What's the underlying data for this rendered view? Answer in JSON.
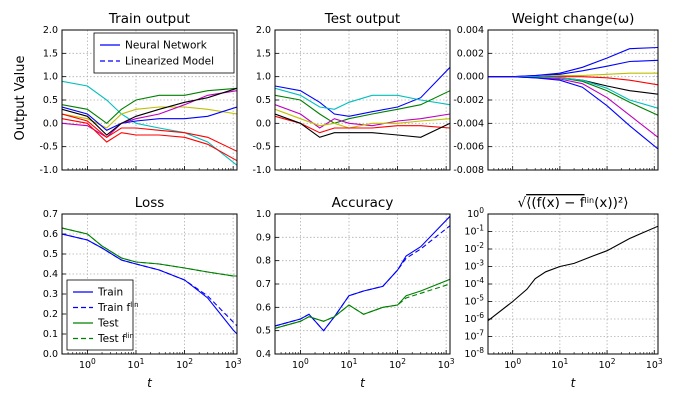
{
  "figure": {
    "ylabel_left": "Output Value",
    "x_axis_label": "t",
    "x_ticks": [
      {
        "label": "10",
        "exp": "0"
      },
      {
        "label": "10",
        "exp": "1"
      },
      {
        "label": "10",
        "exp": "2"
      },
      {
        "label": "10",
        "exp": "3"
      }
    ]
  },
  "chart_data": [
    {
      "id": "train-output",
      "type": "line",
      "title": "Train output",
      "xscale": "log",
      "xlim": [
        0.3,
        1200
      ],
      "ylim": [
        -1.0,
        2.0
      ],
      "yticks": [
        "-1.0",
        "-0.5",
        "0.0",
        "0.5",
        "1.0",
        "1.5",
        "2.0"
      ],
      "legend": {
        "position": "top-right",
        "entries": [
          {
            "label": "Neural Network",
            "style": "solid",
            "color": "#0000ff"
          },
          {
            "label": "Linearized Model",
            "style": "dashed",
            "color": "#0000ff"
          }
        ]
      },
      "x": [
        0.3,
        1,
        2.5,
        5,
        10,
        30,
        100,
        300,
        1200
      ],
      "series": [
        {
          "color": "#00bfbf",
          "values": [
            0.9,
            0.8,
            0.5,
            0.2,
            0.0,
            -0.1,
            -0.2,
            -0.4,
            -0.9
          ]
        },
        {
          "color": "#008000",
          "values": [
            0.4,
            0.3,
            0.0,
            0.3,
            0.5,
            0.6,
            0.6,
            0.7,
            0.75
          ]
        },
        {
          "color": "#bfbf00",
          "values": [
            0.2,
            0.1,
            -0.1,
            0.2,
            0.3,
            0.35,
            0.35,
            0.3,
            0.2
          ]
        },
        {
          "color": "#0000ff",
          "values": [
            0.35,
            0.2,
            -0.15,
            0.0,
            0.05,
            0.1,
            0.1,
            0.15,
            0.35
          ]
        },
        {
          "color": "#bf00bf",
          "values": [
            0.0,
            -0.05,
            -0.3,
            0.0,
            0.1,
            0.2,
            0.4,
            0.6,
            0.7
          ]
        },
        {
          "color": "#000000",
          "values": [
            0.3,
            0.15,
            -0.25,
            0.0,
            0.15,
            0.3,
            0.45,
            0.55,
            0.75
          ]
        },
        {
          "color": "#ff0000",
          "values": [
            0.1,
            0.0,
            -0.4,
            -0.2,
            -0.25,
            -0.25,
            -0.3,
            -0.45,
            -0.8
          ]
        },
        {
          "color": "#ff0000",
          "values": [
            0.2,
            0.05,
            -0.3,
            -0.1,
            -0.1,
            -0.15,
            -0.2,
            -0.3,
            -0.6
          ]
        }
      ]
    },
    {
      "id": "test-output",
      "type": "line",
      "title": "Test output",
      "xscale": "log",
      "xlim": [
        0.3,
        1200
      ],
      "ylim": [
        -1.0,
        2.0
      ],
      "yticks": [
        "-1.0",
        "-0.5",
        "0.0",
        "0.5",
        "1.0",
        "1.5",
        "2.0"
      ],
      "x": [
        0.3,
        1,
        2.5,
        5,
        10,
        30,
        100,
        300,
        1200
      ],
      "series": [
        {
          "color": "#0000ff",
          "values": [
            0.8,
            0.7,
            0.45,
            0.2,
            0.15,
            0.25,
            0.35,
            0.55,
            1.2
          ]
        },
        {
          "color": "#00bfbf",
          "values": [
            0.75,
            0.6,
            0.35,
            0.3,
            0.45,
            0.6,
            0.6,
            0.5,
            0.4
          ]
        },
        {
          "color": "#008000",
          "values": [
            0.6,
            0.5,
            0.2,
            0.0,
            0.1,
            0.2,
            0.3,
            0.4,
            0.7
          ]
        },
        {
          "color": "#bf00bf",
          "values": [
            0.4,
            0.2,
            -0.1,
            0.1,
            0.0,
            -0.05,
            0.05,
            0.1,
            0.2
          ]
        },
        {
          "color": "#bfbf00",
          "values": [
            0.3,
            0.1,
            -0.05,
            0.0,
            -0.1,
            0.0,
            0.0,
            0.05,
            0.1
          ]
        },
        {
          "color": "#ff0000",
          "values": [
            0.15,
            0.0,
            -0.2,
            -0.1,
            -0.1,
            -0.1,
            -0.05,
            -0.05,
            -0.1
          ]
        },
        {
          "color": "#000000",
          "values": [
            0.2,
            0.0,
            -0.3,
            -0.2,
            -0.2,
            -0.2,
            -0.25,
            -0.3,
            0.0
          ]
        }
      ]
    },
    {
      "id": "weight-change",
      "type": "line",
      "title": "Weight change(ω)",
      "xscale": "log",
      "xlim": [
        0.3,
        1200
      ],
      "ylim": [
        -0.008,
        0.004
      ],
      "yticks": [
        "-0.008",
        "-0.006",
        "-0.004",
        "-0.002",
        "0.000",
        "0.002",
        "0.004"
      ],
      "x": [
        0.3,
        1,
        3,
        10,
        30,
        100,
        300,
        1200
      ],
      "series": [
        {
          "color": "#0000ff",
          "values": [
            0,
            0,
            0.0001,
            0.0003,
            0.0008,
            0.0016,
            0.0024,
            0.0025
          ]
        },
        {
          "color": "#0000ff",
          "values": [
            0,
            0,
            0.0001,
            0.0002,
            0.0005,
            0.0009,
            0.0013,
            0.0014
          ]
        },
        {
          "color": "#bfbf00",
          "values": [
            0,
            0,
            0,
            0.0001,
            0.0001,
            0.0002,
            0.0003,
            0.0003
          ]
        },
        {
          "color": "#ff0000",
          "values": [
            0,
            0,
            0,
            0,
            0,
            -0.0001,
            -0.0003,
            -0.0007
          ]
        },
        {
          "color": "#000000",
          "values": [
            0,
            0,
            0,
            -0.0001,
            -0.0003,
            -0.0008,
            -0.0012,
            -0.0015
          ]
        },
        {
          "color": "#008000",
          "values": [
            0,
            0,
            0,
            -0.0001,
            -0.0004,
            -0.0012,
            -0.0022,
            -0.0033
          ]
        },
        {
          "color": "#00bfbf",
          "values": [
            0,
            0,
            0,
            -0.0001,
            -0.0003,
            -0.001,
            -0.002,
            -0.0027
          ]
        },
        {
          "color": "#bf00bf",
          "values": [
            0,
            0,
            -0.0001,
            -0.0002,
            -0.0006,
            -0.0018,
            -0.0033,
            -0.0052
          ]
        },
        {
          "color": "#0000ff",
          "values": [
            0,
            0,
            -0.0001,
            -0.0003,
            -0.0009,
            -0.0025,
            -0.0042,
            -0.0062
          ]
        }
      ]
    },
    {
      "id": "loss",
      "type": "line",
      "title": "Loss",
      "xscale": "log",
      "xlim": [
        0.3,
        1200
      ],
      "ylim": [
        0.0,
        0.7
      ],
      "yticks": [
        "0.0",
        "0.1",
        "0.2",
        "0.3",
        "0.4",
        "0.5",
        "0.6",
        "0.7"
      ],
      "legend": {
        "position": "bottom-left",
        "entries": [
          {
            "label": "Train",
            "style": "solid",
            "color": "#0000ff"
          },
          {
            "label": "Train f",
            "sup": "lin",
            "style": "dashed",
            "color": "#0000ff"
          },
          {
            "label": "Test",
            "style": "solid",
            "color": "#008000"
          },
          {
            "label": "Test f",
            "sup": "lin",
            "style": "dashed",
            "color": "#008000"
          }
        ]
      },
      "x": [
        0.3,
        1,
        2,
        5,
        10,
        30,
        100,
        300,
        1000,
        1200
      ],
      "series": [
        {
          "name": "Train",
          "color": "#0000ff",
          "values": [
            0.6,
            0.57,
            0.53,
            0.47,
            0.45,
            0.42,
            0.37,
            0.28,
            0.12,
            0.1
          ]
        },
        {
          "name": "Train f^lin",
          "color": "#0000ff",
          "dashed": true,
          "values": [
            0.6,
            0.57,
            0.53,
            0.47,
            0.45,
            0.42,
            0.37,
            0.29,
            0.16,
            0.14
          ]
        },
        {
          "name": "Test",
          "color": "#008000",
          "values": [
            0.63,
            0.6,
            0.54,
            0.48,
            0.46,
            0.45,
            0.43,
            0.41,
            0.39,
            0.39
          ]
        },
        {
          "name": "Test f^lin",
          "color": "#008000",
          "dashed": true,
          "values": [
            0.63,
            0.6,
            0.54,
            0.48,
            0.46,
            0.45,
            0.43,
            0.41,
            0.39,
            0.39
          ]
        }
      ]
    },
    {
      "id": "accuracy",
      "type": "line",
      "title": "Accuracy",
      "xscale": "log",
      "xlim": [
        0.3,
        1200
      ],
      "ylim": [
        0.4,
        1.0
      ],
      "yticks": [
        "0.4",
        "0.5",
        "0.6",
        "0.7",
        "0.8",
        "0.9",
        "1.0"
      ],
      "x": [
        0.3,
        1,
        1.5,
        3,
        5,
        10,
        20,
        50,
        100,
        150,
        300,
        1200
      ],
      "series": [
        {
          "color": "#0000ff",
          "values": [
            0.52,
            0.55,
            0.57,
            0.5,
            0.56,
            0.65,
            0.67,
            0.69,
            0.76,
            0.82,
            0.86,
            0.99
          ]
        },
        {
          "color": "#0000ff",
          "dashed": true,
          "values": [
            0.52,
            0.55,
            0.57,
            0.5,
            0.56,
            0.65,
            0.67,
            0.69,
            0.76,
            0.81,
            0.85,
            0.95
          ]
        },
        {
          "color": "#008000",
          "values": [
            0.51,
            0.54,
            0.56,
            0.54,
            0.56,
            0.61,
            0.57,
            0.6,
            0.61,
            0.65,
            0.67,
            0.72
          ]
        },
        {
          "color": "#008000",
          "dashed": true,
          "values": [
            0.51,
            0.54,
            0.56,
            0.54,
            0.56,
            0.61,
            0.57,
            0.6,
            0.61,
            0.64,
            0.66,
            0.7
          ]
        }
      ]
    },
    {
      "id": "rms-diff",
      "type": "line",
      "title": "√⟨(f(x) − f^lin(x))²⟩",
      "xscale": "log",
      "yscale": "log",
      "xlim": [
        0.3,
        1200
      ],
      "ylim": [
        1e-08,
        1
      ],
      "ytick_exps": [
        "0",
        "-1",
        "-2",
        "-3",
        "-4",
        "-5",
        "-6",
        "-7",
        "-8"
      ],
      "x": [
        0.3,
        1,
        2,
        3,
        5,
        10,
        20,
        50,
        100,
        300,
        1200
      ],
      "series": [
        {
          "color": "#000000",
          "values": [
            8e-07,
            1e-05,
            5e-05,
            0.0002,
            0.0005,
            0.001,
            0.0015,
            0.004,
            0.008,
            0.04,
            0.2
          ]
        }
      ]
    }
  ]
}
